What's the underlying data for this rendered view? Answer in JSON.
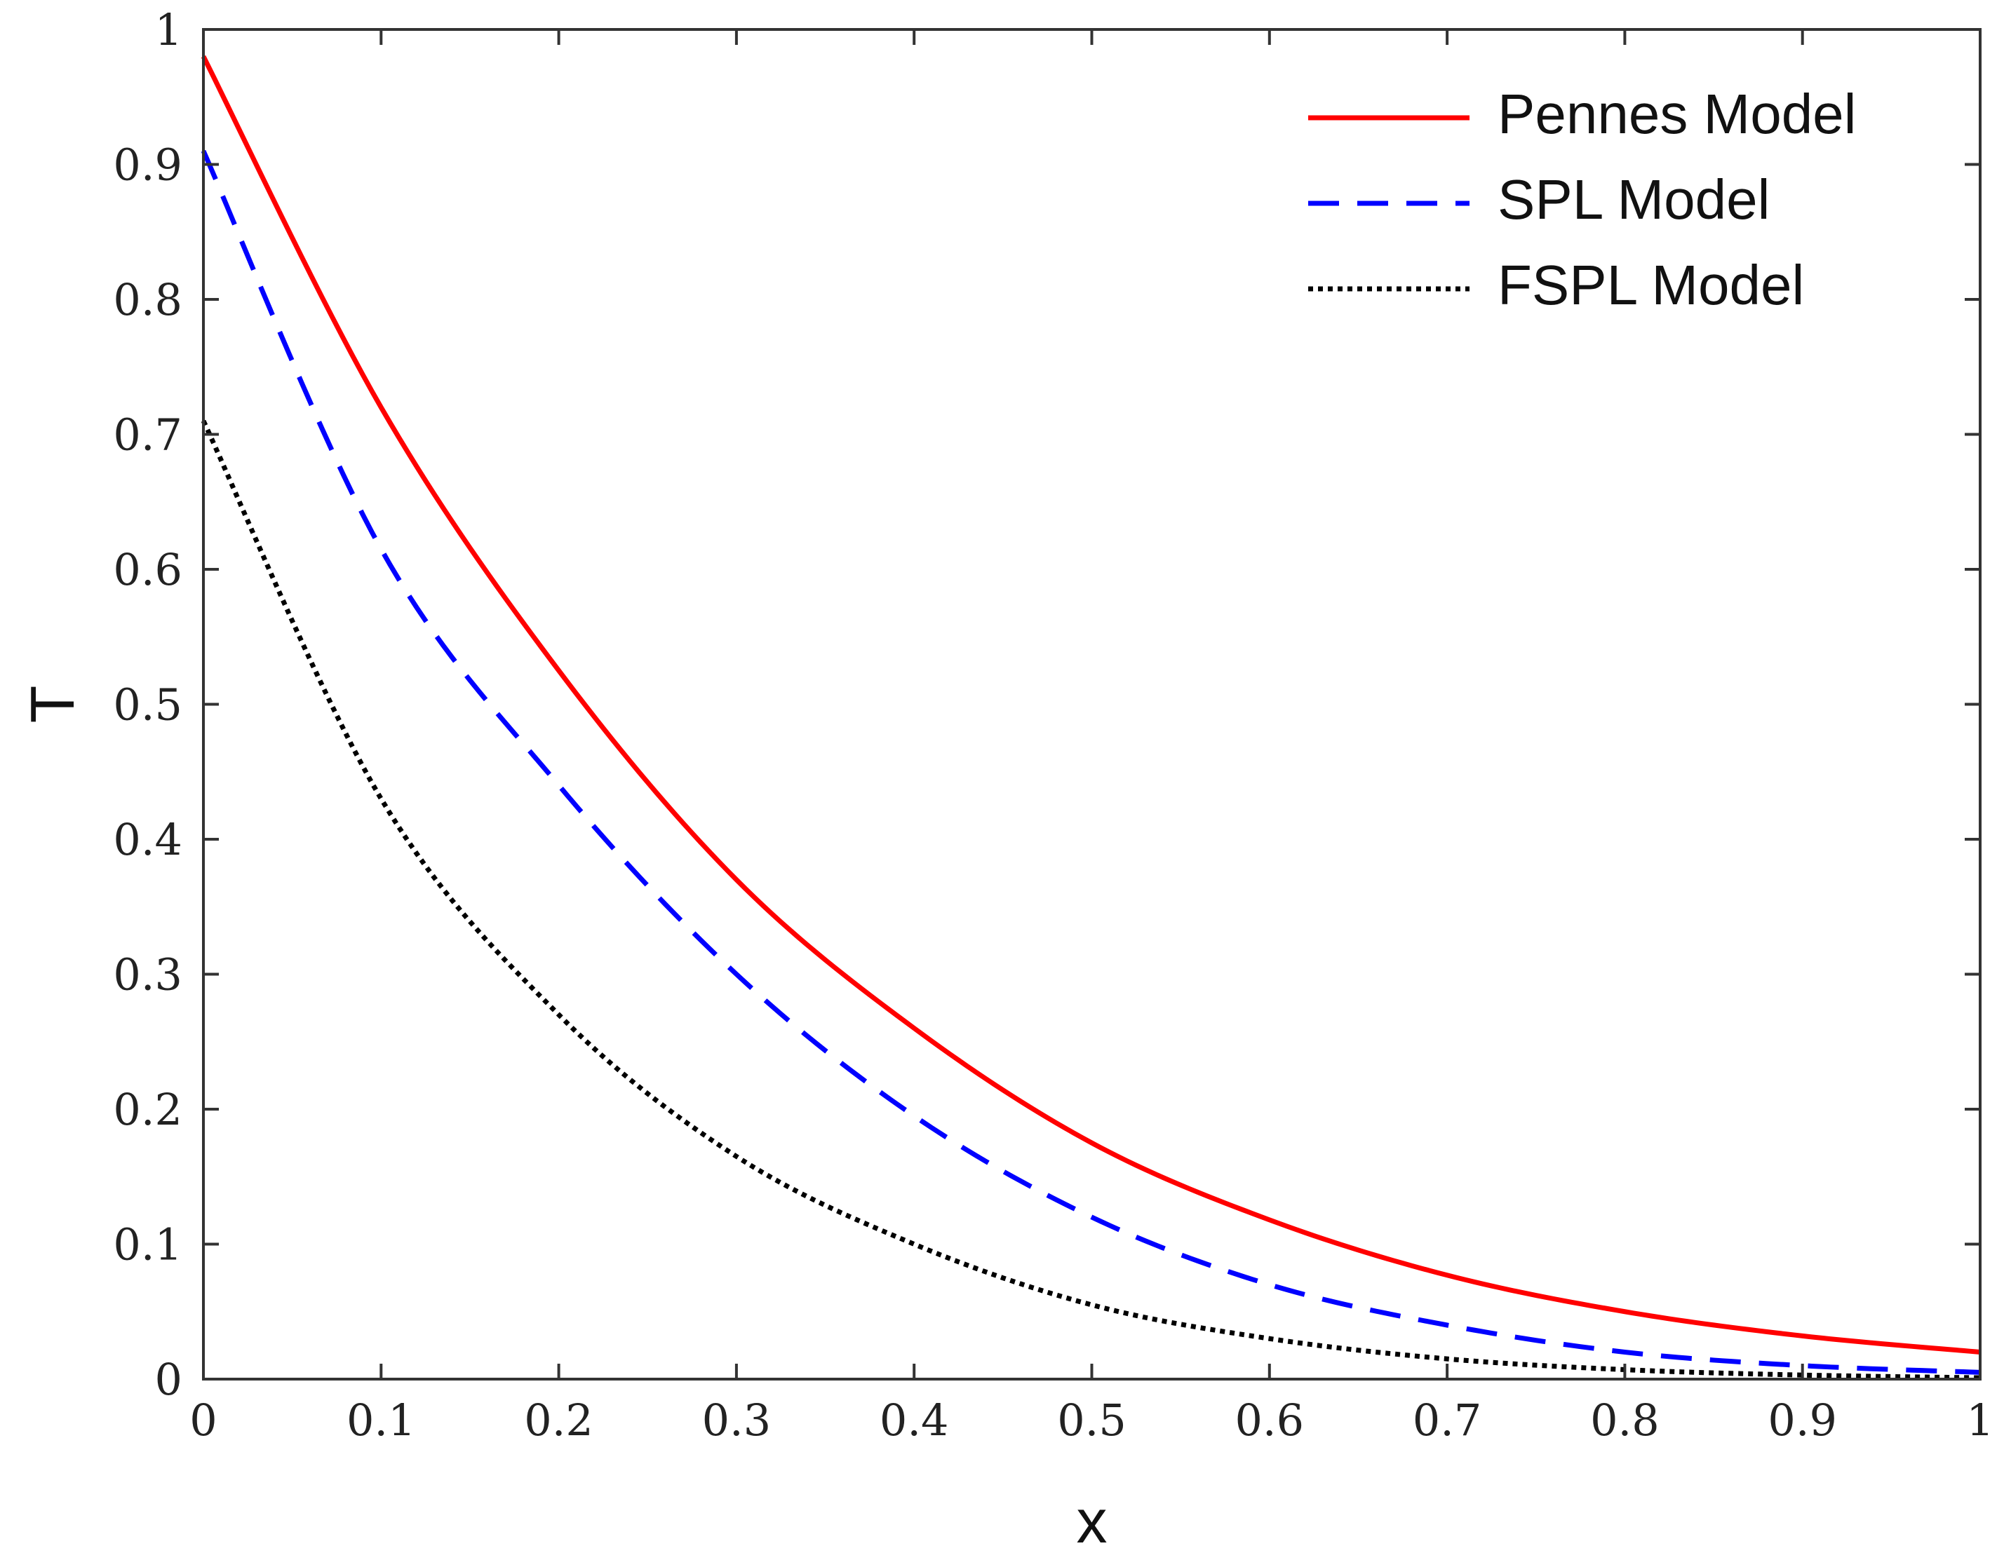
{
  "chart_data": {
    "type": "line",
    "title": "",
    "xlabel": "x",
    "ylabel": "T",
    "xlim": [
      0,
      1
    ],
    "ylim": [
      0,
      1
    ],
    "xticks": [
      0,
      0.1,
      0.2,
      0.3,
      0.4,
      0.5,
      0.6,
      0.7,
      0.8,
      0.9,
      1
    ],
    "xtick_labels": [
      "0",
      "0.1",
      "0.2",
      "0.3",
      "0.4",
      "0.5",
      "0.6",
      "0.7",
      "0.8",
      "0.9",
      "1"
    ],
    "yticks": [
      0,
      0.1,
      0.2,
      0.3,
      0.4,
      0.5,
      0.6,
      0.7,
      0.8,
      0.9,
      1
    ],
    "ytick_labels": [
      "0",
      "0.1",
      "0.2",
      "0.3",
      "0.4",
      "0.5",
      "0.6",
      "0.7",
      "0.8",
      "0.9",
      "1"
    ],
    "grid": false,
    "legend_position": "top-right",
    "x": [
      0,
      0.1,
      0.2,
      0.3,
      0.4,
      0.5,
      0.6,
      0.7,
      0.8,
      0.9,
      1.0
    ],
    "series": [
      {
        "name": "Pennes Model",
        "style": "solid",
        "color": "#ff0000",
        "values": [
          0.98,
          0.72,
          0.525,
          0.37,
          0.26,
          0.175,
          0.118,
          0.077,
          0.05,
          0.032,
          0.02
        ]
      },
      {
        "name": "SPL Model",
        "style": "dashed",
        "color": "#0000ff",
        "values": [
          0.91,
          0.615,
          0.44,
          0.3,
          0.195,
          0.12,
          0.07,
          0.04,
          0.02,
          0.01,
          0.005
        ]
      },
      {
        "name": "FSPL Model",
        "style": "dotted",
        "color": "#000000",
        "values": [
          0.71,
          0.43,
          0.27,
          0.165,
          0.1,
          0.055,
          0.03,
          0.015,
          0.007,
          0.003,
          0.001
        ]
      }
    ]
  }
}
